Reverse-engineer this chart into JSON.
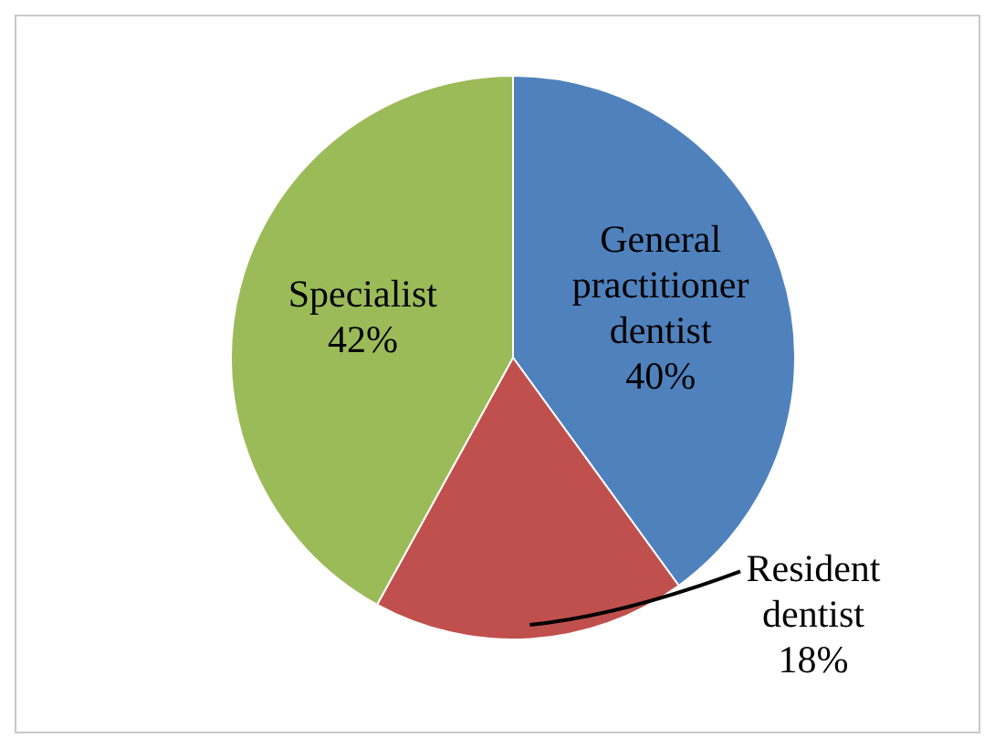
{
  "chart_data": {
    "type": "pie",
    "categories": [
      "General practitioner dentist",
      "Resident dentist",
      "Specialist"
    ],
    "values": [
      40,
      18,
      42
    ],
    "colors": [
      "#4f81bd",
      "#c0504d",
      "#9bbb59"
    ],
    "value_labels": [
      "40%",
      "18%",
      "42%"
    ],
    "legend": false
  }
}
